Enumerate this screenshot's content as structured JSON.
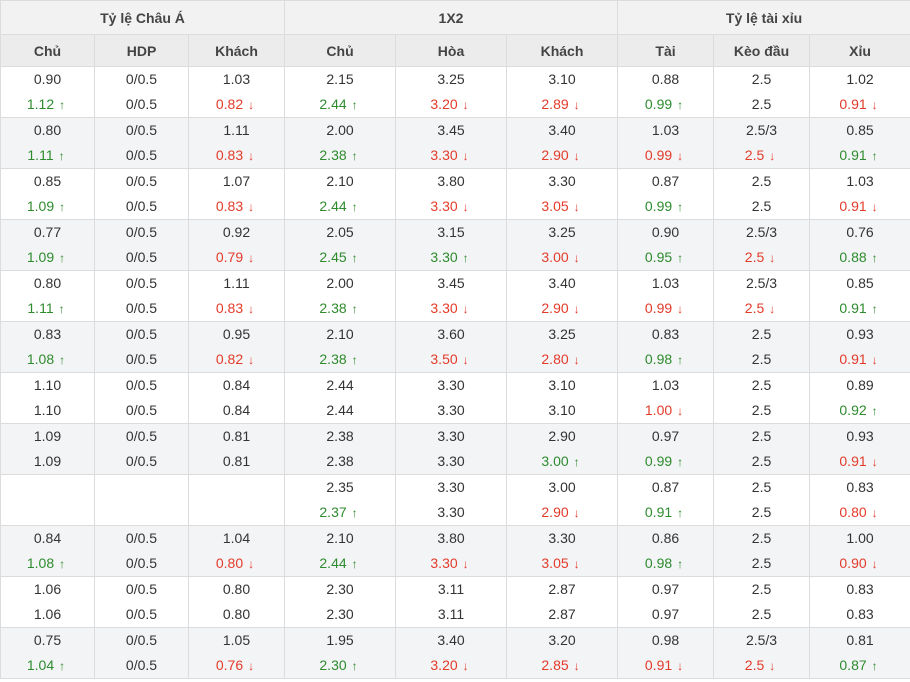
{
  "header": {
    "groups": [
      "Tỷ lệ Châu Á",
      "1X2",
      "Tỷ lệ tài xỉu"
    ],
    "columns": [
      "Chủ",
      "HDP",
      "Khách",
      "Chủ",
      "Hòa",
      "Khách",
      "Tài",
      "Kèo đầu",
      "Xỉu"
    ]
  },
  "rows": [
    [
      [
        "0.90",
        "1.12",
        "u"
      ],
      [
        "0/0.5",
        "0/0.5",
        ""
      ],
      [
        "1.03",
        "0.82",
        "d"
      ],
      [
        "2.15",
        "2.44",
        "u"
      ],
      [
        "3.25",
        "3.20",
        "d"
      ],
      [
        "3.10",
        "2.89",
        "d"
      ],
      [
        "0.88",
        "0.99",
        "u"
      ],
      [
        "2.5",
        "2.5",
        ""
      ],
      [
        "1.02",
        "0.91",
        "d"
      ]
    ],
    [
      [
        "0.80",
        "1.11",
        "u"
      ],
      [
        "0/0.5",
        "0/0.5",
        ""
      ],
      [
        "1.11",
        "0.83",
        "d"
      ],
      [
        "2.00",
        "2.38",
        "u"
      ],
      [
        "3.45",
        "3.30",
        "d"
      ],
      [
        "3.40",
        "2.90",
        "d"
      ],
      [
        "1.03",
        "0.99",
        "d"
      ],
      [
        "2.5/3",
        "2.5",
        "d"
      ],
      [
        "0.85",
        "0.91",
        "u"
      ]
    ],
    [
      [
        "0.85",
        "1.09",
        "u"
      ],
      [
        "0/0.5",
        "0/0.5",
        ""
      ],
      [
        "1.07",
        "0.83",
        "d"
      ],
      [
        "2.10",
        "2.44",
        "u"
      ],
      [
        "3.80",
        "3.30",
        "d"
      ],
      [
        "3.30",
        "3.05",
        "d"
      ],
      [
        "0.87",
        "0.99",
        "u"
      ],
      [
        "2.5",
        "2.5",
        ""
      ],
      [
        "1.03",
        "0.91",
        "d"
      ]
    ],
    [
      [
        "0.77",
        "1.09",
        "u"
      ],
      [
        "0/0.5",
        "0/0.5",
        ""
      ],
      [
        "0.92",
        "0.79",
        "d"
      ],
      [
        "2.05",
        "2.45",
        "u"
      ],
      [
        "3.15",
        "3.30",
        "u"
      ],
      [
        "3.25",
        "3.00",
        "d"
      ],
      [
        "0.90",
        "0.95",
        "u"
      ],
      [
        "2.5/3",
        "2.5",
        "d"
      ],
      [
        "0.76",
        "0.88",
        "u"
      ]
    ],
    [
      [
        "0.80",
        "1.11",
        "u"
      ],
      [
        "0/0.5",
        "0/0.5",
        ""
      ],
      [
        "1.11",
        "0.83",
        "d"
      ],
      [
        "2.00",
        "2.38",
        "u"
      ],
      [
        "3.45",
        "3.30",
        "d"
      ],
      [
        "3.40",
        "2.90",
        "d"
      ],
      [
        "1.03",
        "0.99",
        "d"
      ],
      [
        "2.5/3",
        "2.5",
        "d"
      ],
      [
        "0.85",
        "0.91",
        "u"
      ]
    ],
    [
      [
        "0.83",
        "1.08",
        "u"
      ],
      [
        "0/0.5",
        "0/0.5",
        ""
      ],
      [
        "0.95",
        "0.82",
        "d"
      ],
      [
        "2.10",
        "2.38",
        "u"
      ],
      [
        "3.60",
        "3.50",
        "d"
      ],
      [
        "3.25",
        "2.80",
        "d"
      ],
      [
        "0.83",
        "0.98",
        "u"
      ],
      [
        "2.5",
        "2.5",
        ""
      ],
      [
        "0.93",
        "0.91",
        "d"
      ]
    ],
    [
      [
        "1.10",
        "1.10",
        ""
      ],
      [
        "0/0.5",
        "0/0.5",
        ""
      ],
      [
        "0.84",
        "0.84",
        ""
      ],
      [
        "2.44",
        "2.44",
        ""
      ],
      [
        "3.30",
        "3.30",
        ""
      ],
      [
        "3.10",
        "3.10",
        ""
      ],
      [
        "1.03",
        "1.00",
        "d"
      ],
      [
        "2.5",
        "2.5",
        ""
      ],
      [
        "0.89",
        "0.92",
        "u"
      ]
    ],
    [
      [
        "1.09",
        "1.09",
        ""
      ],
      [
        "0/0.5",
        "0/0.5",
        ""
      ],
      [
        "0.81",
        "0.81",
        ""
      ],
      [
        "2.38",
        "2.38",
        ""
      ],
      [
        "3.30",
        "3.30",
        ""
      ],
      [
        "2.90",
        "3.00",
        "u"
      ],
      [
        "0.97",
        "0.99",
        "u"
      ],
      [
        "2.5",
        "2.5",
        ""
      ],
      [
        "0.93",
        "0.91",
        "d"
      ]
    ],
    [
      [
        "",
        "",
        ""
      ],
      [
        "",
        "",
        ""
      ],
      [
        "",
        "",
        ""
      ],
      [
        "2.35",
        "2.37",
        "u"
      ],
      [
        "3.30",
        "3.30",
        ""
      ],
      [
        "3.00",
        "2.90",
        "d"
      ],
      [
        "0.87",
        "0.91",
        "u"
      ],
      [
        "2.5",
        "2.5",
        ""
      ],
      [
        "0.83",
        "0.80",
        "d"
      ]
    ],
    [
      [
        "0.84",
        "1.08",
        "u"
      ],
      [
        "0/0.5",
        "0/0.5",
        ""
      ],
      [
        "1.04",
        "0.80",
        "d"
      ],
      [
        "2.10",
        "2.44",
        "u"
      ],
      [
        "3.80",
        "3.30",
        "d"
      ],
      [
        "3.30",
        "3.05",
        "d"
      ],
      [
        "0.86",
        "0.98",
        "u"
      ],
      [
        "2.5",
        "2.5",
        ""
      ],
      [
        "1.00",
        "0.90",
        "d"
      ]
    ],
    [
      [
        "1.06",
        "1.06",
        ""
      ],
      [
        "0/0.5",
        "0/0.5",
        ""
      ],
      [
        "0.80",
        "0.80",
        ""
      ],
      [
        "2.30",
        "2.30",
        ""
      ],
      [
        "3.11",
        "3.11",
        ""
      ],
      [
        "2.87",
        "2.87",
        ""
      ],
      [
        "0.97",
        "0.97",
        ""
      ],
      [
        "2.5",
        "2.5",
        ""
      ],
      [
        "0.83",
        "0.83",
        ""
      ]
    ],
    [
      [
        "0.75",
        "1.04",
        "u"
      ],
      [
        "0/0.5",
        "0/0.5",
        ""
      ],
      [
        "1.05",
        "0.76",
        "d"
      ],
      [
        "1.95",
        "2.30",
        "u"
      ],
      [
        "3.40",
        "3.20",
        "d"
      ],
      [
        "3.20",
        "2.85",
        "d"
      ],
      [
        "0.98",
        "0.91",
        "d"
      ],
      [
        "2.5/3",
        "2.5",
        "d"
      ],
      [
        "0.81",
        "0.87",
        "u"
      ]
    ]
  ],
  "colors": {
    "up": "#2e8b2e",
    "down": "#e33b2a"
  },
  "icons": {
    "u": "arrow-up-icon",
    "d": "arrow-down-icon"
  }
}
